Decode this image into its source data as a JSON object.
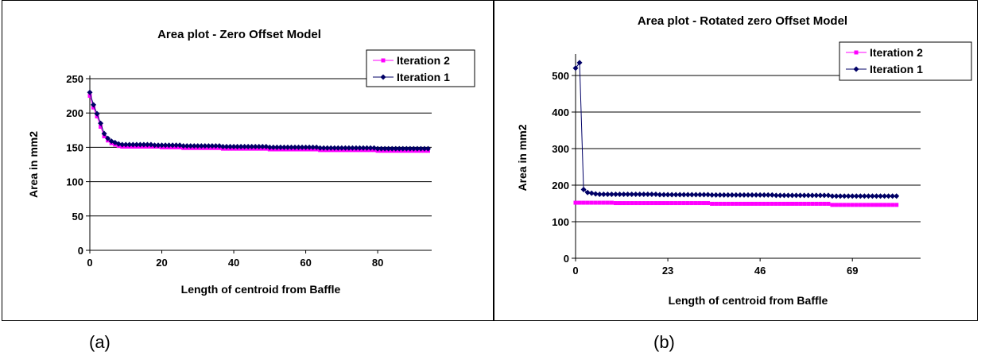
{
  "chart_data": [
    {
      "type": "line",
      "title": "Area plot - Zero Offset Model",
      "xlabel": "Length of centroid from Baffle",
      "ylabel": "Area in mm2",
      "xlim": [
        0,
        95
      ],
      "ylim": [
        0,
        250
      ],
      "xticks": [
        0,
        20,
        40,
        60,
        80
      ],
      "yticks": [
        0,
        50,
        100,
        150,
        200,
        250
      ],
      "grid": "horizontal",
      "legend": "top-right",
      "series": [
        {
          "name": "Iteration 2",
          "color": "#ff00ff",
          "marker": "square",
          "x": [
            0,
            1,
            2,
            3,
            4,
            5,
            6,
            7,
            8,
            9,
            10,
            11,
            12,
            13,
            14,
            15,
            16,
            17,
            18,
            19,
            20,
            21,
            22,
            23,
            24,
            25,
            26,
            27,
            28,
            29,
            30,
            31,
            32,
            33,
            34,
            35,
            36,
            37,
            38,
            39,
            40,
            41,
            42,
            43,
            44,
            45,
            46,
            47,
            48,
            49,
            50,
            51,
            52,
            53,
            54,
            55,
            56,
            57,
            58,
            59,
            60,
            61,
            62,
            63,
            64,
            65,
            66,
            67,
            68,
            69,
            70,
            71,
            72,
            73,
            74,
            75,
            76,
            77,
            78,
            79,
            80,
            81,
            82,
            83,
            84,
            85,
            86,
            87,
            88,
            89,
            90,
            91,
            92,
            93,
            94
          ],
          "y": [
            225,
            208,
            195,
            180,
            166,
            160,
            156,
            154,
            152,
            151,
            151,
            151,
            151,
            151,
            151,
            151,
            151,
            151,
            151,
            151,
            150,
            150,
            150,
            150,
            150,
            150,
            149,
            149,
            149,
            149,
            149,
            149,
            149,
            149,
            149,
            149,
            149,
            148,
            148,
            148,
            148,
            148,
            148,
            148,
            148,
            148,
            148,
            148,
            148,
            148,
            147,
            147,
            147,
            147,
            147,
            147,
            147,
            147,
            147,
            147,
            147,
            147,
            147,
            147,
            146,
            146,
            146,
            146,
            146,
            146,
            146,
            146,
            146,
            146,
            146,
            146,
            146,
            146,
            146,
            146,
            145,
            145,
            145,
            145,
            145,
            145,
            145,
            145,
            145,
            145,
            145,
            145,
            145,
            145,
            145
          ]
        },
        {
          "name": "Iteration 1",
          "color": "#000066",
          "marker": "diamond",
          "x": [
            0,
            1,
            2,
            3,
            4,
            5,
            6,
            7,
            8,
            9,
            10,
            11,
            12,
            13,
            14,
            15,
            16,
            17,
            18,
            19,
            20,
            21,
            22,
            23,
            24,
            25,
            26,
            27,
            28,
            29,
            30,
            31,
            32,
            33,
            34,
            35,
            36,
            37,
            38,
            39,
            40,
            41,
            42,
            43,
            44,
            45,
            46,
            47,
            48,
            49,
            50,
            51,
            52,
            53,
            54,
            55,
            56,
            57,
            58,
            59,
            60,
            61,
            62,
            63,
            64,
            65,
            66,
            67,
            68,
            69,
            70,
            71,
            72,
            73,
            74,
            75,
            76,
            77,
            78,
            79,
            80,
            81,
            82,
            83,
            84,
            85,
            86,
            87,
            88,
            89,
            90,
            91,
            92,
            93,
            94
          ],
          "y": [
            230,
            212,
            199,
            185,
            170,
            163,
            159,
            157,
            155,
            154,
            154,
            154,
            154,
            154,
            154,
            154,
            154,
            154,
            153,
            153,
            153,
            153,
            153,
            153,
            153,
            153,
            152,
            152,
            152,
            152,
            152,
            152,
            152,
            152,
            152,
            152,
            152,
            151,
            151,
            151,
            151,
            151,
            151,
            151,
            151,
            151,
            151,
            151,
            151,
            151,
            150,
            150,
            150,
            150,
            150,
            150,
            150,
            150,
            150,
            150,
            150,
            150,
            150,
            150,
            149,
            149,
            149,
            149,
            149,
            149,
            149,
            149,
            149,
            149,
            149,
            149,
            149,
            149,
            149,
            149,
            148,
            148,
            148,
            148,
            148,
            148,
            148,
            148,
            148,
            148,
            148,
            148,
            148,
            148,
            148
          ]
        }
      ]
    },
    {
      "type": "line",
      "title": "Area plot - Rotated zero Offset Model",
      "xlabel": "Length of centroid from Baffle",
      "ylabel": "Area in mm2",
      "xlim": [
        0,
        86
      ],
      "ylim": [
        0,
        550
      ],
      "xticks": [
        0,
        23,
        46,
        69
      ],
      "yticks": [
        0,
        100,
        200,
        300,
        400,
        500
      ],
      "grid": "horizontal",
      "legend": "top-right",
      "series": [
        {
          "name": "Iteration 2",
          "color": "#ff00ff",
          "marker": "square",
          "x": [
            0,
            1,
            2,
            3,
            4,
            5,
            6,
            7,
            8,
            9,
            10,
            11,
            12,
            13,
            14,
            15,
            16,
            17,
            18,
            19,
            20,
            21,
            22,
            23,
            24,
            25,
            26,
            27,
            28,
            29,
            30,
            31,
            32,
            33,
            34,
            35,
            36,
            37,
            38,
            39,
            40,
            41,
            42,
            43,
            44,
            45,
            46,
            47,
            48,
            49,
            50,
            51,
            52,
            53,
            54,
            55,
            56,
            57,
            58,
            59,
            60,
            61,
            62,
            63,
            64,
            65,
            66,
            67,
            68,
            69,
            70,
            71,
            72,
            73,
            74,
            75,
            76,
            77,
            78,
            79,
            80
          ],
          "y": [
            152,
            152,
            152,
            152,
            152,
            152,
            152,
            152,
            152,
            152,
            151,
            151,
            151,
            151,
            151,
            151,
            151,
            151,
            151,
            151,
            151,
            151,
            151,
            151,
            151,
            151,
            151,
            151,
            151,
            151,
            151,
            151,
            151,
            151,
            149,
            149,
            149,
            149,
            149,
            149,
            149,
            149,
            149,
            149,
            149,
            149,
            149,
            149,
            149,
            149,
            149,
            149,
            149,
            149,
            149,
            149,
            149,
            149,
            149,
            149,
            149,
            149,
            149,
            149,
            146,
            146,
            146,
            146,
            146,
            146,
            146,
            146,
            146,
            146,
            146,
            146,
            146,
            146,
            146,
            146,
            146
          ]
        },
        {
          "name": "Iteration 1",
          "color": "#000066",
          "marker": "diamond",
          "x": [
            0,
            1,
            2,
            3,
            4,
            5,
            6,
            7,
            8,
            9,
            10,
            11,
            12,
            13,
            14,
            15,
            16,
            17,
            18,
            19,
            20,
            21,
            22,
            23,
            24,
            25,
            26,
            27,
            28,
            29,
            30,
            31,
            32,
            33,
            34,
            35,
            36,
            37,
            38,
            39,
            40,
            41,
            42,
            43,
            44,
            45,
            46,
            47,
            48,
            49,
            50,
            51,
            52,
            53,
            54,
            55,
            56,
            57,
            58,
            59,
            60,
            61,
            62,
            63,
            64,
            65,
            66,
            67,
            68,
            69,
            70,
            71,
            72,
            73,
            74,
            75,
            76,
            77,
            78,
            79,
            80
          ],
          "y": [
            520,
            535,
            188,
            180,
            178,
            176,
            175,
            175,
            175,
            175,
            175,
            175,
            175,
            175,
            175,
            175,
            175,
            175,
            175,
            175,
            175,
            174,
            174,
            174,
            174,
            174,
            174,
            174,
            174,
            174,
            174,
            174,
            174,
            174,
            173,
            173,
            173,
            173,
            173,
            173,
            173,
            173,
            173,
            173,
            173,
            173,
            173,
            173,
            173,
            173,
            172,
            172,
            172,
            172,
            172,
            172,
            172,
            172,
            172,
            172,
            172,
            172,
            172,
            172,
            170,
            170,
            170,
            170,
            170,
            170,
            170,
            170,
            170,
            170,
            170,
            170,
            170,
            170,
            170,
            170,
            170
          ]
        }
      ]
    }
  ],
  "captions": {
    "a": "(a)",
    "b": "(b)"
  }
}
